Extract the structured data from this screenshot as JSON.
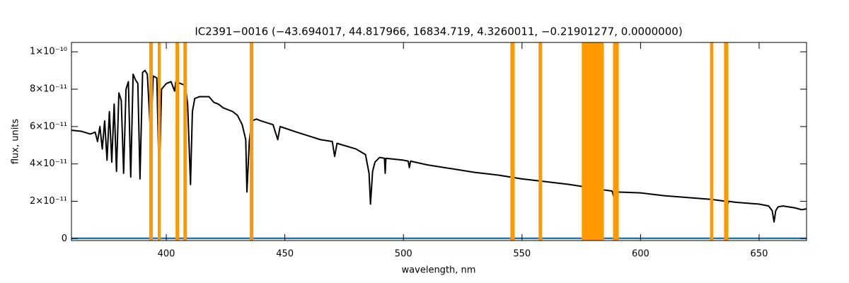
{
  "chart_data": {
    "type": "line",
    "title": "IC2391−0016    (−43.694017, 44.817966, 16834.719, 4.3260011, −0.21901277, 0.0000000)",
    "x_label": "wavelength, nm",
    "y_label": "flux, units",
    "xlim": [
      360,
      670
    ],
    "ylim": [
      -1e-12,
      1.05e-10
    ],
    "xticks": [
      400,
      450,
      500,
      550,
      600,
      650
    ],
    "yticks": [
      0,
      {
        "value": 2e-11,
        "label": "2×10⁻¹¹"
      },
      {
        "value": 4e-11,
        "label": "4×10⁻¹¹"
      },
      {
        "value": 6e-11,
        "label": "6×10⁻¹¹"
      },
      {
        "value": 8e-11,
        "label": "8×10⁻¹¹"
      },
      {
        "value": 1e-10,
        "label": "1×10⁻¹⁰"
      }
    ],
    "highlight_color": "#ff9900",
    "highlight_ranges": [
      [
        392.8,
        394.3
      ],
      [
        396.4,
        397.6
      ],
      [
        403.9,
        405.4
      ],
      [
        407.2,
        408.7
      ],
      [
        435.2,
        436.7
      ],
      [
        545.1,
        546.9
      ],
      [
        557.0,
        558.5
      ],
      [
        575.2,
        584.5
      ],
      [
        588.4,
        590.8
      ],
      [
        629.3,
        630.7
      ],
      [
        635.2,
        637.0
      ]
    ],
    "series": [
      {
        "color": "#000000",
        "x": [
          360,
          364,
          368,
          370,
          371,
          372,
          373,
          374,
          375,
          376,
          377,
          378,
          379,
          380,
          381,
          382,
          383,
          384,
          385,
          386,
          387,
          388,
          388.9,
          390,
          391,
          392,
          393.4,
          394.5,
          396,
          397,
          398,
          400,
          402,
          403.5,
          404,
          406,
          408,
          409,
          410.2,
          411,
          412,
          414,
          418,
          420,
          422,
          424,
          426,
          428,
          430,
          432,
          433.5,
          434,
          435,
          436,
          438,
          440,
          445,
          447,
          448,
          455,
          460,
          465,
          470,
          471,
          472,
          480,
          484,
          485.5,
          486.1,
          487,
          488,
          490,
          492,
          492.3,
          492.6,
          500,
          502,
          502.5,
          503,
          510,
          520,
          530,
          540,
          550,
          560,
          570,
          575,
          585,
          588,
          589,
          590,
          600,
          610,
          620,
          630,
          636,
          636.5,
          637,
          640,
          650,
          654,
          655.5,
          656.3,
          657,
          658,
          660,
          665,
          668,
          670
        ],
        "values": [
          5.8e-11,
          5.75e-11,
          5.6e-11,
          5.7e-11,
          5.2e-11,
          6e-11,
          4.8e-11,
          6.3e-11,
          4.2e-11,
          6.8e-11,
          4.1e-11,
          7.2e-11,
          3.6e-11,
          7.8e-11,
          7.4e-11,
          3.5e-11,
          8e-11,
          8.4e-11,
          3.3e-11,
          8.8e-11,
          8.5e-11,
          8.3e-11,
          3.2e-11,
          8.9e-11,
          9e-11,
          8.8e-11,
          5.5e-11,
          8.7e-11,
          8.6e-11,
          3.1e-11,
          8e-11,
          8.3e-11,
          8.4e-11,
          7.9e-11,
          8.4e-11,
          8.3e-11,
          8.2e-11,
          7.2e-11,
          2.9e-11,
          6.8e-11,
          7.5e-11,
          7.6e-11,
          7.6e-11,
          7.3e-11,
          7.2e-11,
          7e-11,
          6.9e-11,
          6.8e-11,
          6.6e-11,
          6.1e-11,
          5.3e-11,
          2.5e-11,
          5.2e-11,
          6.3e-11,
          6.4e-11,
          6.3e-11,
          6.1e-11,
          5.3e-11,
          6e-11,
          5.7e-11,
          5.5e-11,
          5.3e-11,
          5.2e-11,
          4.4e-11,
          5.1e-11,
          4.8e-11,
          4.5e-11,
          3.5e-11,
          1.85e-11,
          3.6e-11,
          4.1e-11,
          4.35e-11,
          4.3e-11,
          3.5e-11,
          4.3e-11,
          4.2e-11,
          4.15e-11,
          3.8e-11,
          4.15e-11,
          3.95e-11,
          3.75e-11,
          3.55e-11,
          3.4e-11,
          3.2e-11,
          3.05e-11,
          2.9e-11,
          2.8e-11,
          2.6e-11,
          2.55e-11,
          2.1e-11,
          2.5e-11,
          2.45e-11,
          2.3e-11,
          2.2e-11,
          2.1e-11,
          2e-11,
          1.7e-11,
          2e-11,
          1.95e-11,
          1.85e-11,
          1.75e-11,
          1.5e-11,
          9e-12,
          1.5e-11,
          1.7e-11,
          1.75e-11,
          1.65e-11,
          1.55e-11,
          1.6e-11
        ]
      },
      {
        "color": "#1f77b4",
        "x": [
          360,
          670
        ],
        "values": [
          2e-13,
          2e-13
        ]
      }
    ]
  }
}
